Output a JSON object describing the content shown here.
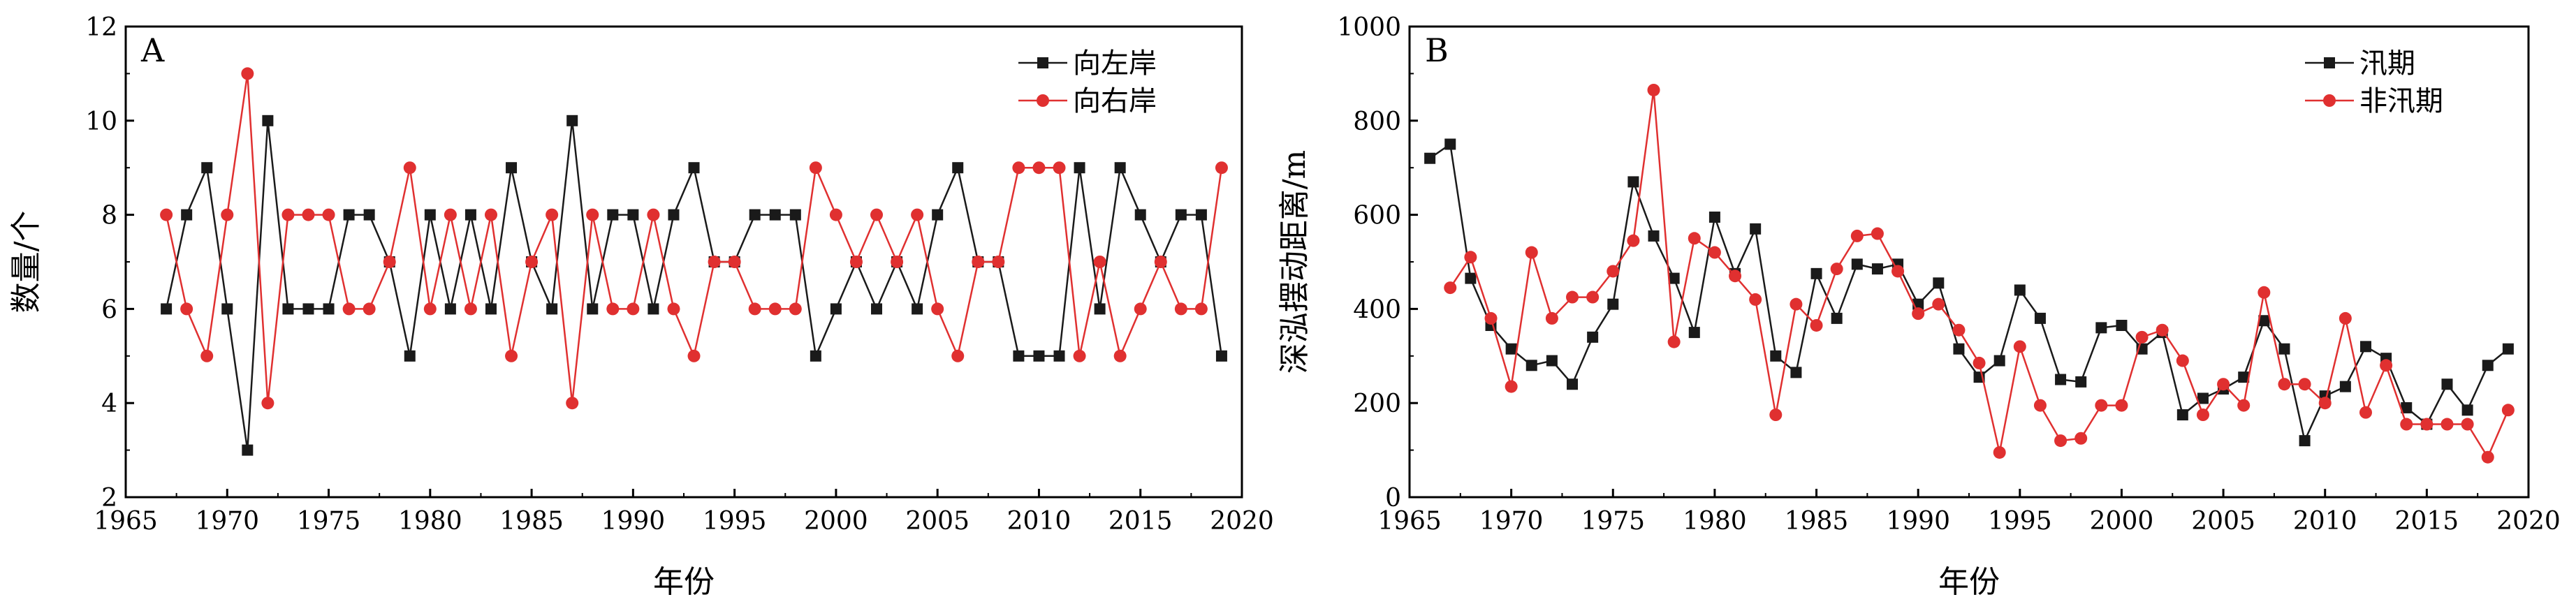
{
  "colors": {
    "series_black": "#1a1a1a",
    "series_red": "#e03030",
    "axis": "#000000"
  },
  "chart_data": [
    {
      "type": "line",
      "panel_label": "A",
      "xlabel": "年份",
      "ylabel": "数量/个",
      "xlim": [
        1965,
        2020
      ],
      "ylim": [
        2,
        12
      ],
      "xticks": [
        1965,
        1970,
        1975,
        1980,
        1985,
        1990,
        1995,
        2000,
        2005,
        2010,
        2015,
        2020
      ],
      "yticks": [
        2,
        4,
        6,
        8,
        10,
        12
      ],
      "legend_position": "top-right",
      "grid": false,
      "x": [
        1967,
        1968,
        1969,
        1970,
        1971,
        1972,
        1973,
        1974,
        1975,
        1976,
        1977,
        1978,
        1979,
        1980,
        1981,
        1982,
        1983,
        1984,
        1985,
        1986,
        1987,
        1988,
        1989,
        1990,
        1991,
        1992,
        1993,
        1994,
        1995,
        1996,
        1997,
        1998,
        1999,
        2000,
        2001,
        2002,
        2003,
        2004,
        2005,
        2006,
        2007,
        2008,
        2009,
        2010,
        2011,
        2012,
        2013,
        2014,
        2015,
        2016,
        2017,
        2018,
        2019
      ],
      "series": [
        {
          "name": "向左岸",
          "color": "#1a1a1a",
          "marker": "square",
          "values": [
            6,
            8,
            9,
            6,
            3,
            10,
            6,
            6,
            6,
            8,
            8,
            7,
            5,
            8,
            6,
            8,
            6,
            9,
            7,
            6,
            10,
            6,
            8,
            8,
            6,
            8,
            9,
            7,
            7,
            8,
            8,
            8,
            5,
            6,
            7,
            6,
            7,
            6,
            8,
            9,
            7,
            7,
            5,
            5,
            5,
            9,
            6,
            9,
            8,
            7,
            8,
            8,
            5
          ]
        },
        {
          "name": "向右岸",
          "color": "#e03030",
          "marker": "circle",
          "values": [
            8,
            6,
            5,
            8,
            11,
            4,
            8,
            8,
            8,
            6,
            6,
            7,
            9,
            6,
            8,
            6,
            8,
            5,
            7,
            8,
            4,
            8,
            6,
            6,
            8,
            6,
            5,
            7,
            7,
            6,
            6,
            6,
            9,
            8,
            7,
            8,
            7,
            8,
            6,
            5,
            7,
            7,
            9,
            9,
            9,
            5,
            7,
            5,
            6,
            7,
            6,
            6,
            9
          ]
        }
      ]
    },
    {
      "type": "line",
      "panel_label": "B",
      "xlabel": "年份",
      "ylabel": "深泓摆动距离/m",
      "xlim": [
        1965,
        2020
      ],
      "ylim": [
        0,
        1000
      ],
      "xticks": [
        1965,
        1970,
        1975,
        1980,
        1985,
        1990,
        1995,
        2000,
        2005,
        2010,
        2015,
        2020
      ],
      "yticks": [
        0,
        200,
        400,
        600,
        800,
        1000
      ],
      "legend_position": "top-right",
      "grid": false,
      "series": [
        {
          "name": "汛期",
          "color": "#1a1a1a",
          "marker": "square",
          "x": [
            1966,
            1967,
            1968,
            1969,
            1970,
            1971,
            1972,
            1973,
            1974,
            1975,
            1976,
            1977,
            1978,
            1979,
            1980,
            1981,
            1982,
            1983,
            1984,
            1985,
            1986,
            1987,
            1988,
            1989,
            1990,
            1991,
            1992,
            1993,
            1994,
            1995,
            1996,
            1997,
            1998,
            1999,
            2000,
            2001,
            2002,
            2003,
            2004,
            2005,
            2006,
            2007,
            2008,
            2009,
            2010,
            2011,
            2012,
            2013,
            2014,
            2015,
            2016,
            2017,
            2018,
            2019
          ],
          "values": [
            720,
            750,
            465,
            365,
            315,
            280,
            290,
            240,
            340,
            410,
            670,
            555,
            465,
            350,
            595,
            475,
            570,
            300,
            265,
            475,
            380,
            495,
            485,
            495,
            410,
            455,
            315,
            255,
            290,
            440,
            380,
            250,
            245,
            360,
            365,
            315,
            350,
            175,
            210,
            230,
            255,
            375,
            315,
            120,
            215,
            235,
            320,
            295,
            190,
            155,
            240,
            185,
            280,
            315
          ]
        },
        {
          "name": "非汛期",
          "color": "#e03030",
          "marker": "circle",
          "x": [
            1967,
            1968,
            1969,
            1970,
            1971,
            1972,
            1973,
            1974,
            1975,
            1976,
            1977,
            1978,
            1979,
            1980,
            1981,
            1982,
            1983,
            1984,
            1985,
            1986,
            1987,
            1988,
            1989,
            1990,
            1991,
            1992,
            1993,
            1994,
            1995,
            1996,
            1997,
            1998,
            1999,
            2000,
            2001,
            2002,
            2003,
            2004,
            2005,
            2006,
            2007,
            2008,
            2009,
            2010,
            2011,
            2012,
            2013,
            2014,
            2015,
            2016,
            2017,
            2018,
            2019
          ],
          "values": [
            445,
            510,
            380,
            235,
            520,
            380,
            425,
            425,
            480,
            545,
            865,
            330,
            550,
            520,
            470,
            420,
            175,
            410,
            365,
            485,
            555,
            560,
            480,
            390,
            410,
            355,
            285,
            95,
            320,
            195,
            120,
            125,
            195,
            195,
            340,
            355,
            290,
            175,
            240,
            195,
            435,
            240,
            240,
            200,
            380,
            180,
            280,
            155,
            155,
            155,
            155,
            85,
            185
          ]
        }
      ]
    }
  ]
}
